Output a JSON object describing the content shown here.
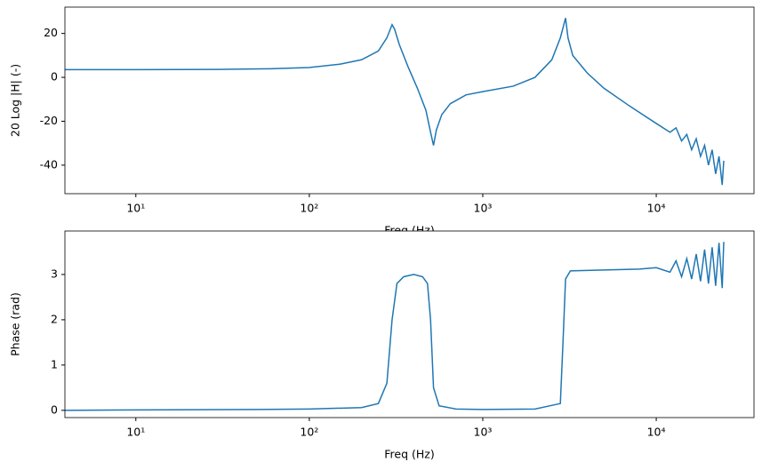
{
  "chart_data": [
    {
      "type": "line",
      "xlabel": "Freq (Hz)",
      "ylabel": "20 Log |H| (-)",
      "log_x": true,
      "color": "#1f77b4",
      "x": [
        3.9,
        10,
        30,
        60,
        100,
        150,
        200,
        250,
        280,
        300,
        310,
        330,
        370,
        420,
        470,
        500,
        520,
        540,
        580,
        650,
        800,
        1000,
        1500,
        2000,
        2500,
        2800,
        3000,
        3100,
        3300,
        4000,
        5000,
        7000,
        10000,
        12000,
        13000,
        14000,
        15000,
        16000,
        17000,
        18000,
        19000,
        20000,
        21000,
        22000,
        23000,
        24000,
        24500
      ],
      "values": [
        3.5,
        3.5,
        3.6,
        3.9,
        4.5,
        6,
        8,
        12,
        18,
        24,
        22,
        15,
        5,
        -5,
        -15,
        -25,
        -31,
        -24,
        -17,
        -12,
        -8,
        -6.5,
        -4,
        0,
        8,
        18,
        27,
        18,
        10,
        2,
        -5,
        -13,
        -21,
        -25,
        -23,
        -29,
        -26,
        -33,
        -28,
        -36,
        -31,
        -40,
        -33,
        -44,
        -36,
        -49,
        -38
      ],
      "xlim": [
        3.9,
        36600
      ],
      "ylim": [
        -53,
        32
      ],
      "xticks": [
        {
          "value": 10,
          "label": "10¹"
        },
        {
          "value": 100,
          "label": "10²"
        },
        {
          "value": 1000,
          "label": "10³"
        },
        {
          "value": 10000,
          "label": "10⁴"
        }
      ],
      "yticks": [
        -40,
        -20,
        0,
        20
      ]
    },
    {
      "type": "line",
      "xlabel": "Freq (Hz)",
      "ylabel": "Phase (rad)",
      "log_x": true,
      "color": "#1f77b4",
      "x": [
        3.9,
        10,
        50,
        100,
        200,
        250,
        280,
        300,
        320,
        350,
        400,
        450,
        480,
        500,
        520,
        560,
        700,
        1000,
        2000,
        2800,
        2900,
        3000,
        3200,
        5000,
        8000,
        10000,
        12000,
        13000,
        14000,
        15000,
        16000,
        17000,
        18000,
        19000,
        20000,
        21000,
        22000,
        23000,
        24000,
        24500
      ],
      "values": [
        0,
        0.01,
        0.02,
        0.03,
        0.06,
        0.15,
        0.6,
        2,
        2.8,
        2.95,
        3.0,
        2.95,
        2.8,
        2,
        0.5,
        0.1,
        0.03,
        0.02,
        0.03,
        0.15,
        1.5,
        2.9,
        3.08,
        3.1,
        3.12,
        3.15,
        3.05,
        3.3,
        2.95,
        3.35,
        2.9,
        3.45,
        2.85,
        3.55,
        2.8,
        3.6,
        2.75,
        3.7,
        2.7,
        3.72
      ],
      "xlim": [
        3.9,
        36600
      ],
      "ylim": [
        -0.16,
        3.96
      ],
      "xticks": [
        {
          "value": 10,
          "label": "10¹"
        },
        {
          "value": 100,
          "label": "10²"
        },
        {
          "value": 1000,
          "label": "10³"
        },
        {
          "value": 10000,
          "label": "10⁴"
        }
      ],
      "yticks": [
        0,
        1,
        2,
        3
      ]
    }
  ]
}
